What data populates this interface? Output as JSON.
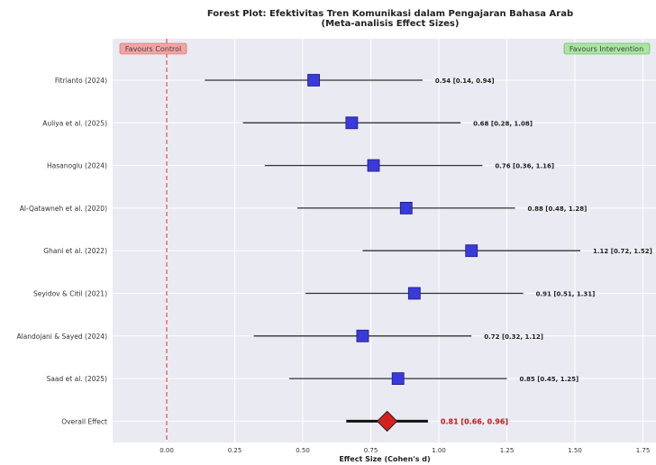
{
  "chart_data": {
    "type": "forest",
    "title": "Forest Plot: Efektivitas Tren Komunikasi dalam Pengajaran Bahasa Arab",
    "subtitle": "(Meta-analisis Effect Sizes)",
    "xlabel": "Effect Size (Cohen's d)",
    "ylabel": "",
    "xlim": [
      -0.2,
      1.75
    ],
    "x_ticks": [
      "0.00",
      "0.25",
      "0.50",
      "0.75",
      "1.00",
      "1.25",
      "1.50",
      "1.75"
    ],
    "reference_line": 0,
    "grid": true,
    "studies": [
      {
        "name": "Fitrianto (2024)",
        "effect": 0.54,
        "ci_low": 0.14,
        "ci_high": 0.94,
        "label": "0.54 [0.14, 0.94]"
      },
      {
        "name": "Auliya et al. (2025)",
        "effect": 0.68,
        "ci_low": 0.28,
        "ci_high": 1.08,
        "label": "0.68 [0.28, 1.08]"
      },
      {
        "name": "Hasanoglu (2024)",
        "effect": 0.76,
        "ci_low": 0.36,
        "ci_high": 1.16,
        "label": "0.76 [0.36, 1.16]"
      },
      {
        "name": "Al-Qatawneh et al. (2020)",
        "effect": 0.88,
        "ci_low": 0.48,
        "ci_high": 1.28,
        "label": "0.88 [0.48, 1.28]"
      },
      {
        "name": "Ghani et al. (2022)",
        "effect": 1.12,
        "ci_low": 0.72,
        "ci_high": 1.52,
        "label": "1.12 [0.72, 1.52]"
      },
      {
        "name": "Seyidov & Citil (2021)",
        "effect": 0.91,
        "ci_low": 0.51,
        "ci_high": 1.31,
        "label": "0.91 [0.51, 1.31]"
      },
      {
        "name": "Alandojani & Sayed (2024)",
        "effect": 0.72,
        "ci_low": 0.32,
        "ci_high": 1.12,
        "label": "0.72 [0.32, 1.12]"
      },
      {
        "name": "Saad et al. (2025)",
        "effect": 0.85,
        "ci_low": 0.45,
        "ci_high": 1.25,
        "label": "0.85 [0.45, 1.25]"
      }
    ],
    "overall": {
      "name": "Overall Effect",
      "effect": 0.81,
      "ci_low": 0.66,
      "ci_high": 0.96,
      "label": "0.81 [0.66, 0.96]"
    },
    "annotations": {
      "left": "Favours Control",
      "right": "Favours Intervention"
    },
    "colors": {
      "background": "#eaeaf2",
      "grid": "#ffffff",
      "study_marker": "#3a3adb",
      "overall_marker": "#d62020",
      "ci_line": "#333333",
      "reference_line": "#e8504a",
      "left_box": "#f4a3a3",
      "right_box": "#a8e6a1",
      "overall_text": "#cc1111"
    }
  }
}
